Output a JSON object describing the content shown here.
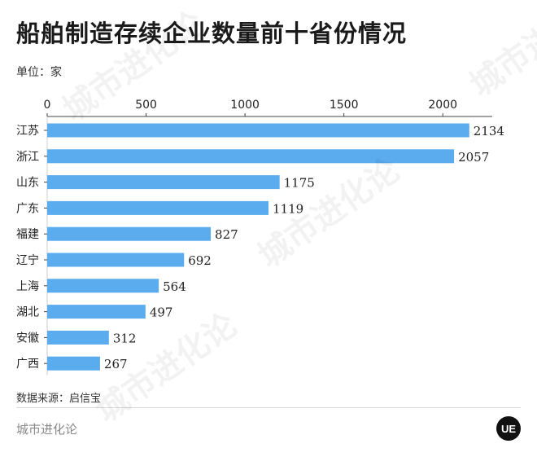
{
  "title": "船舶制造存续企业数量前十省份情况",
  "unit_label": "单位：家",
  "source_label": "数据来源：启信宝",
  "brand": "城市进化论",
  "logo_text": "UE",
  "colors": {
    "bar": "#5aacef",
    "axis": "#444444",
    "text": "#222222"
  },
  "chart_data": {
    "type": "bar",
    "orientation": "horizontal",
    "categories": [
      "江苏",
      "浙江",
      "山东",
      "广东",
      "福建",
      "辽宁",
      "上海",
      "湖北",
      "安徽",
      "广西"
    ],
    "values": [
      2134,
      2057,
      1175,
      1119,
      827,
      692,
      564,
      497,
      312,
      267
    ],
    "xlim": [
      0,
      2250
    ],
    "xticks": [
      "0",
      "500",
      "1000",
      "1500",
      "2000"
    ],
    "xtick_values": [
      0,
      500,
      1000,
      1500,
      2000
    ],
    "grid": false,
    "data_labels": true
  }
}
